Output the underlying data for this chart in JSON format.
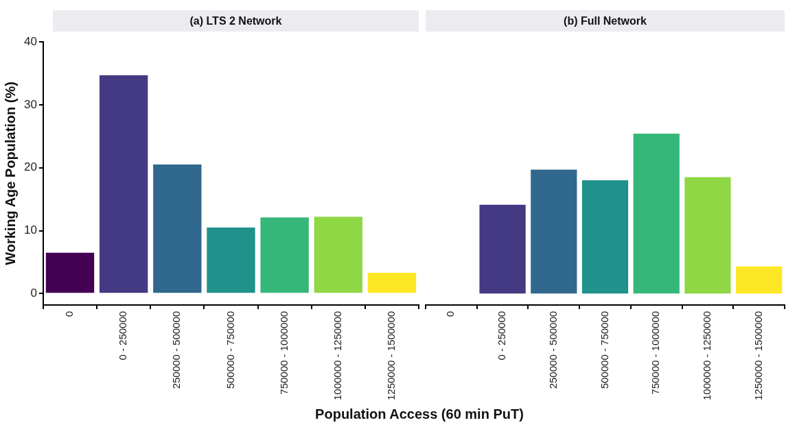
{
  "chart_data": [
    {
      "type": "bar",
      "title": "(a) LTS 2 Network",
      "xlabel": "Population Access (60 min PuT)",
      "ylabel": "Working Age Population (%)",
      "categories": [
        "0",
        "0 - 250000",
        "250000 - 500000",
        "500000 - 750000",
        "750000 - 1000000",
        "1000000 - 1250000",
        "1250000 - 1500000"
      ],
      "values": [
        6.5,
        34.7,
        20.5,
        10.5,
        12.1,
        12.2,
        3.3
      ],
      "colors": [
        "#440154",
        "#443983",
        "#31688e",
        "#21918c",
        "#35b779",
        "#8fd744",
        "#fde725"
      ],
      "ylim": [
        -1.8,
        40
      ],
      "yticks": [
        0,
        10,
        20,
        30,
        40
      ],
      "grid": false,
      "legend": false
    },
    {
      "type": "bar",
      "title": "(b) Full Network",
      "categories": [
        "0",
        "0 - 250000",
        "250000 - 500000",
        "500000 - 750000",
        "750000 - 1000000",
        "1000000 - 1250000",
        "1250000 - 1500000"
      ],
      "values": [
        null,
        14.1,
        19.7,
        18.0,
        25.4,
        18.5,
        4.3
      ],
      "colors": [
        "#440154",
        "#443983",
        "#31688e",
        "#21918c",
        "#35b779",
        "#8fd744",
        "#fde725"
      ],
      "ylim": [
        -1.8,
        40
      ],
      "yticks": [
        0,
        10,
        20,
        30,
        40
      ],
      "grid": false,
      "legend": false,
      "tick_labels": "x"
    }
  ]
}
